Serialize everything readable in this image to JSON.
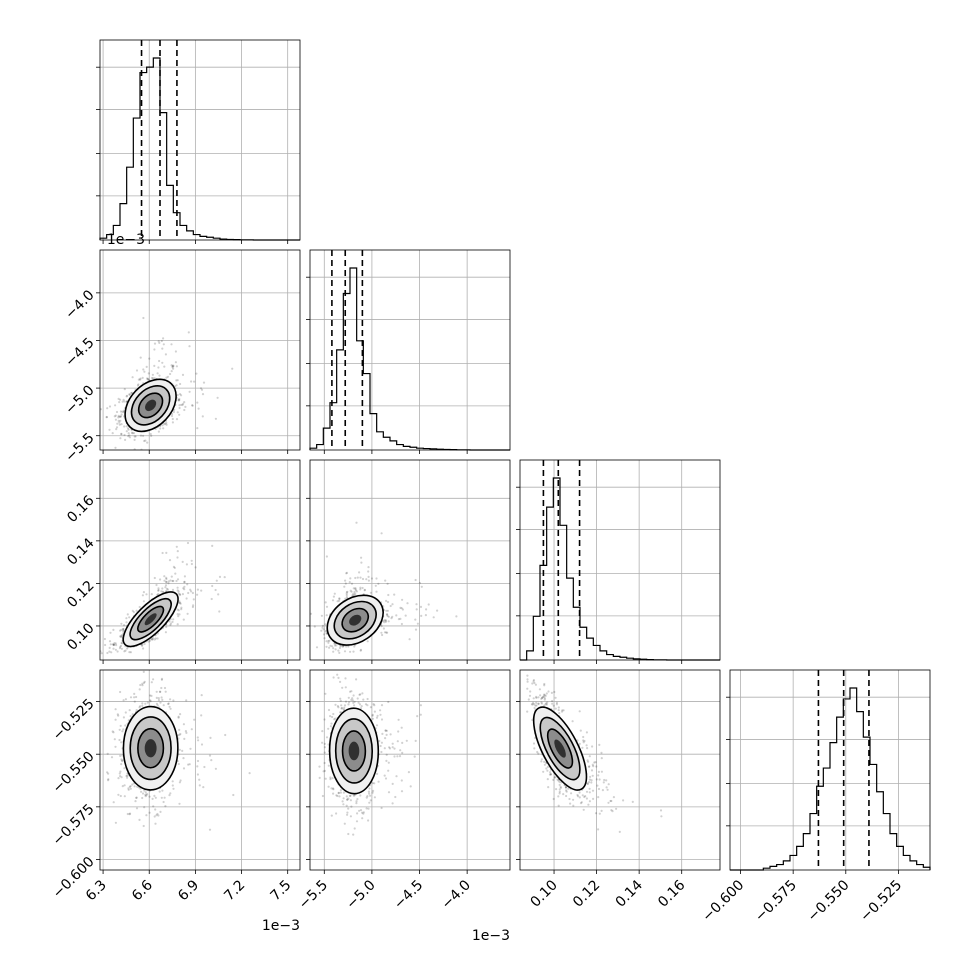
{
  "chart_data": {
    "type": "corner",
    "grid": true,
    "diag_ylabel": "",
    "params": [
      {
        "xlim": [
          6.28,
          7.58
        ],
        "xticks": [
          6.3,
          6.6,
          6.9,
          7.2,
          7.5
        ],
        "ticklabels": [
          "6.3",
          "6.6",
          "6.9",
          "7.2",
          "7.5"
        ],
        "offset": "1e−3",
        "quantiles": [
          6.55,
          6.67,
          6.78
        ]
      },
      {
        "xlim": [
          -5.65,
          -3.55
        ],
        "xticks": [
          -5.5,
          -5.0,
          -4.5,
          -4.0
        ],
        "ticklabels": [
          "−5.5",
          "−5.0",
          "−4.5",
          "−4.0"
        ],
        "offset": "1e−3",
        "quantiles": [
          -5.42,
          -5.28,
          -5.1
        ]
      },
      {
        "xlim": [
          0.084,
          0.178
        ],
        "xticks": [
          0.1,
          0.12,
          0.14,
          0.16
        ],
        "ticklabels": [
          "0.10",
          "0.12",
          "0.14",
          "0.16"
        ],
        "offset": "",
        "quantiles": [
          0.095,
          0.102,
          0.112
        ]
      },
      {
        "xlim": [
          -0.605,
          -0.51
        ],
        "xticks": [
          -0.6,
          -0.575,
          -0.55,
          -0.525
        ],
        "ticklabels": [
          "−0.600",
          "−0.575",
          "−0.550",
          "−0.525"
        ],
        "offset": "",
        "quantiles": [
          -0.563,
          -0.551,
          -0.539
        ]
      }
    ],
    "histograms": [
      [
        0.01,
        0.03,
        0.08,
        0.2,
        0.4,
        0.67,
        0.92,
        0.95,
        1.0,
        0.7,
        0.3,
        0.15,
        0.08,
        0.05,
        0.03,
        0.02,
        0.015,
        0.01,
        0.005,
        0.003,
        0.002,
        0.001,
        0.001,
        0.0,
        0.0,
        0.0,
        0.0,
        0.0,
        0.0,
        0.0
      ],
      [
        0.01,
        0.03,
        0.12,
        0.26,
        0.55,
        0.86,
        1.0,
        0.6,
        0.42,
        0.2,
        0.1,
        0.07,
        0.05,
        0.03,
        0.02,
        0.015,
        0.01,
        0.008,
        0.006,
        0.004,
        0.003,
        0.002,
        0.001,
        0.001,
        0.0,
        0.0,
        0.0,
        0.0,
        0.0,
        0.0
      ],
      [
        0.0,
        0.05,
        0.24,
        0.52,
        0.84,
        1.0,
        0.74,
        0.45,
        0.29,
        0.18,
        0.12,
        0.08,
        0.05,
        0.03,
        0.02,
        0.015,
        0.01,
        0.006,
        0.004,
        0.002,
        0.001,
        0.001,
        0.0,
        0.0,
        0.0,
        0.0,
        0.0,
        0.0,
        0.0,
        0.0
      ],
      [
        0.0,
        0.0,
        0.0,
        0.0,
        0.0,
        0.01,
        0.02,
        0.03,
        0.05,
        0.08,
        0.13,
        0.2,
        0.31,
        0.46,
        0.56,
        0.7,
        0.84,
        0.94,
        1.0,
        0.87,
        0.73,
        0.58,
        0.43,
        0.31,
        0.2,
        0.13,
        0.08,
        0.05,
        0.03,
        0.015
      ]
    ],
    "correlations": [
      [
        1,
        0.35,
        0.75,
        0.0
      ],
      [
        0.35,
        1,
        0.4,
        0.0
      ],
      [
        0.75,
        0.4,
        1,
        -0.7
      ],
      [
        0.0,
        0.0,
        -0.7,
        1
      ]
    ]
  }
}
